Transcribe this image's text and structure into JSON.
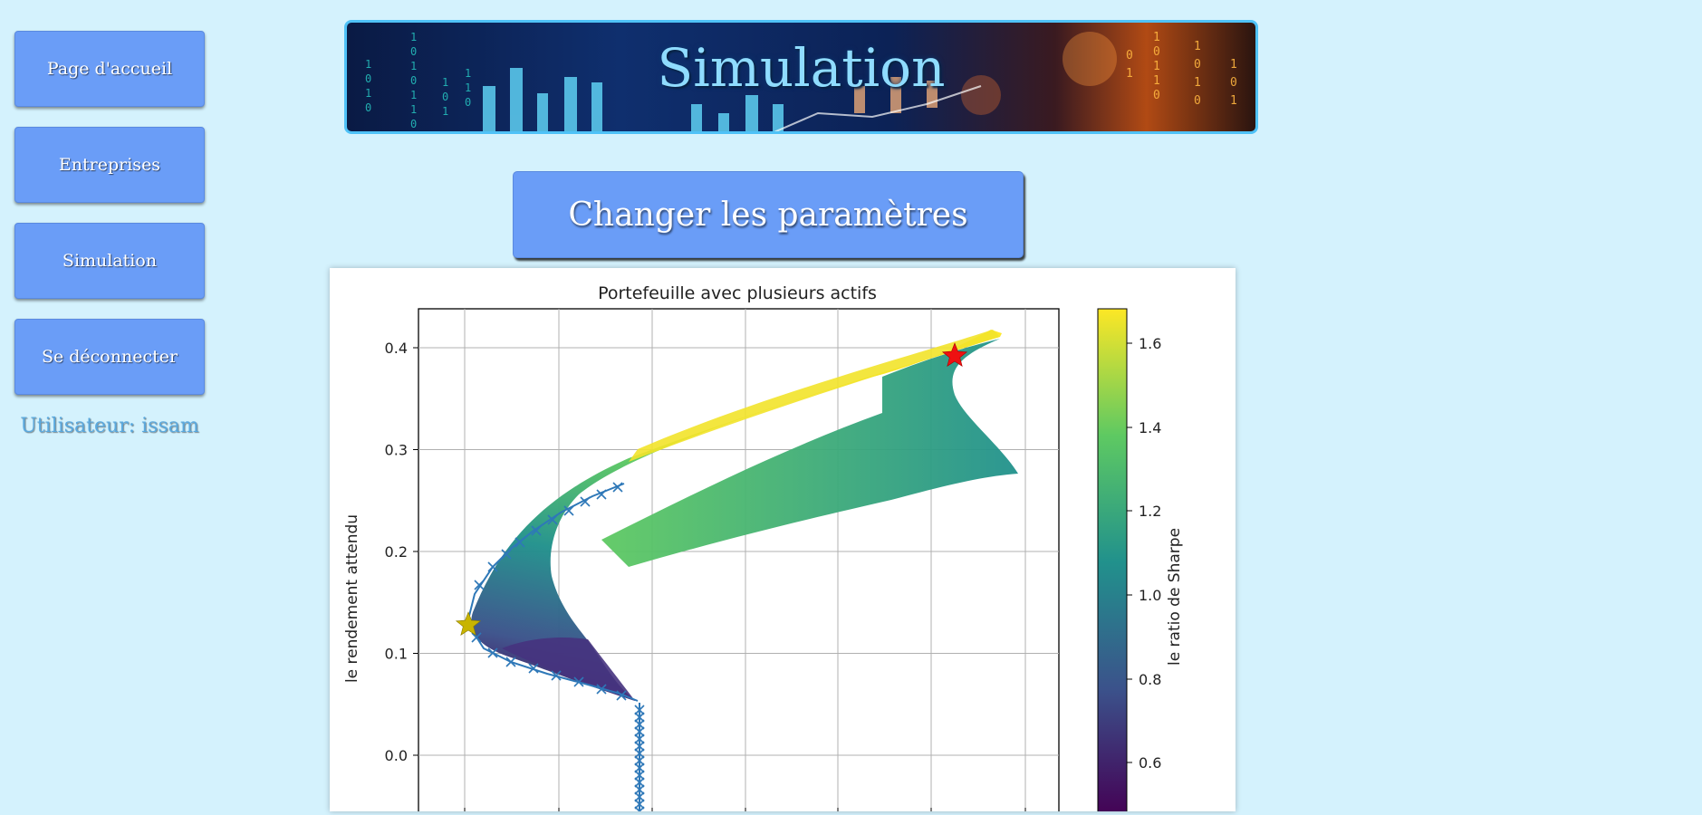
{
  "sidebar": {
    "items": [
      {
        "label": "Page d'accueil"
      },
      {
        "label": "Entreprises"
      },
      {
        "label": "Simulation"
      },
      {
        "label": "Se déconnecter"
      }
    ],
    "user_line": "Utilisateur: issam"
  },
  "banner": {
    "title": "Simulation"
  },
  "change_button": {
    "label": "Changer les paramètres"
  },
  "chart_data": {
    "type": "scatter",
    "title": "Portefeuille avec plusieurs actifs",
    "ylabel": "le rendement attendu",
    "xlabel": "",
    "colorbar_label": "le ratio de Sharpe",
    "yticks": [
      "0.4",
      "0.3",
      "0.2",
      "0.1",
      "0.0"
    ],
    "colorbar_ticks": [
      "1.6",
      "1.4",
      "1.2",
      "1.0",
      "0.8",
      "0.6"
    ],
    "ylim": [
      -0.02,
      0.44
    ],
    "grid": true,
    "colormap": [
      "#440154",
      "#3b528b",
      "#21918c",
      "#5ec962",
      "#fde725"
    ],
    "markers": {
      "max_sharpe_star_color": "#ee1111",
      "min_volatility_star_color": "#c8b400",
      "frontier_color": "#2e78b8"
    }
  }
}
